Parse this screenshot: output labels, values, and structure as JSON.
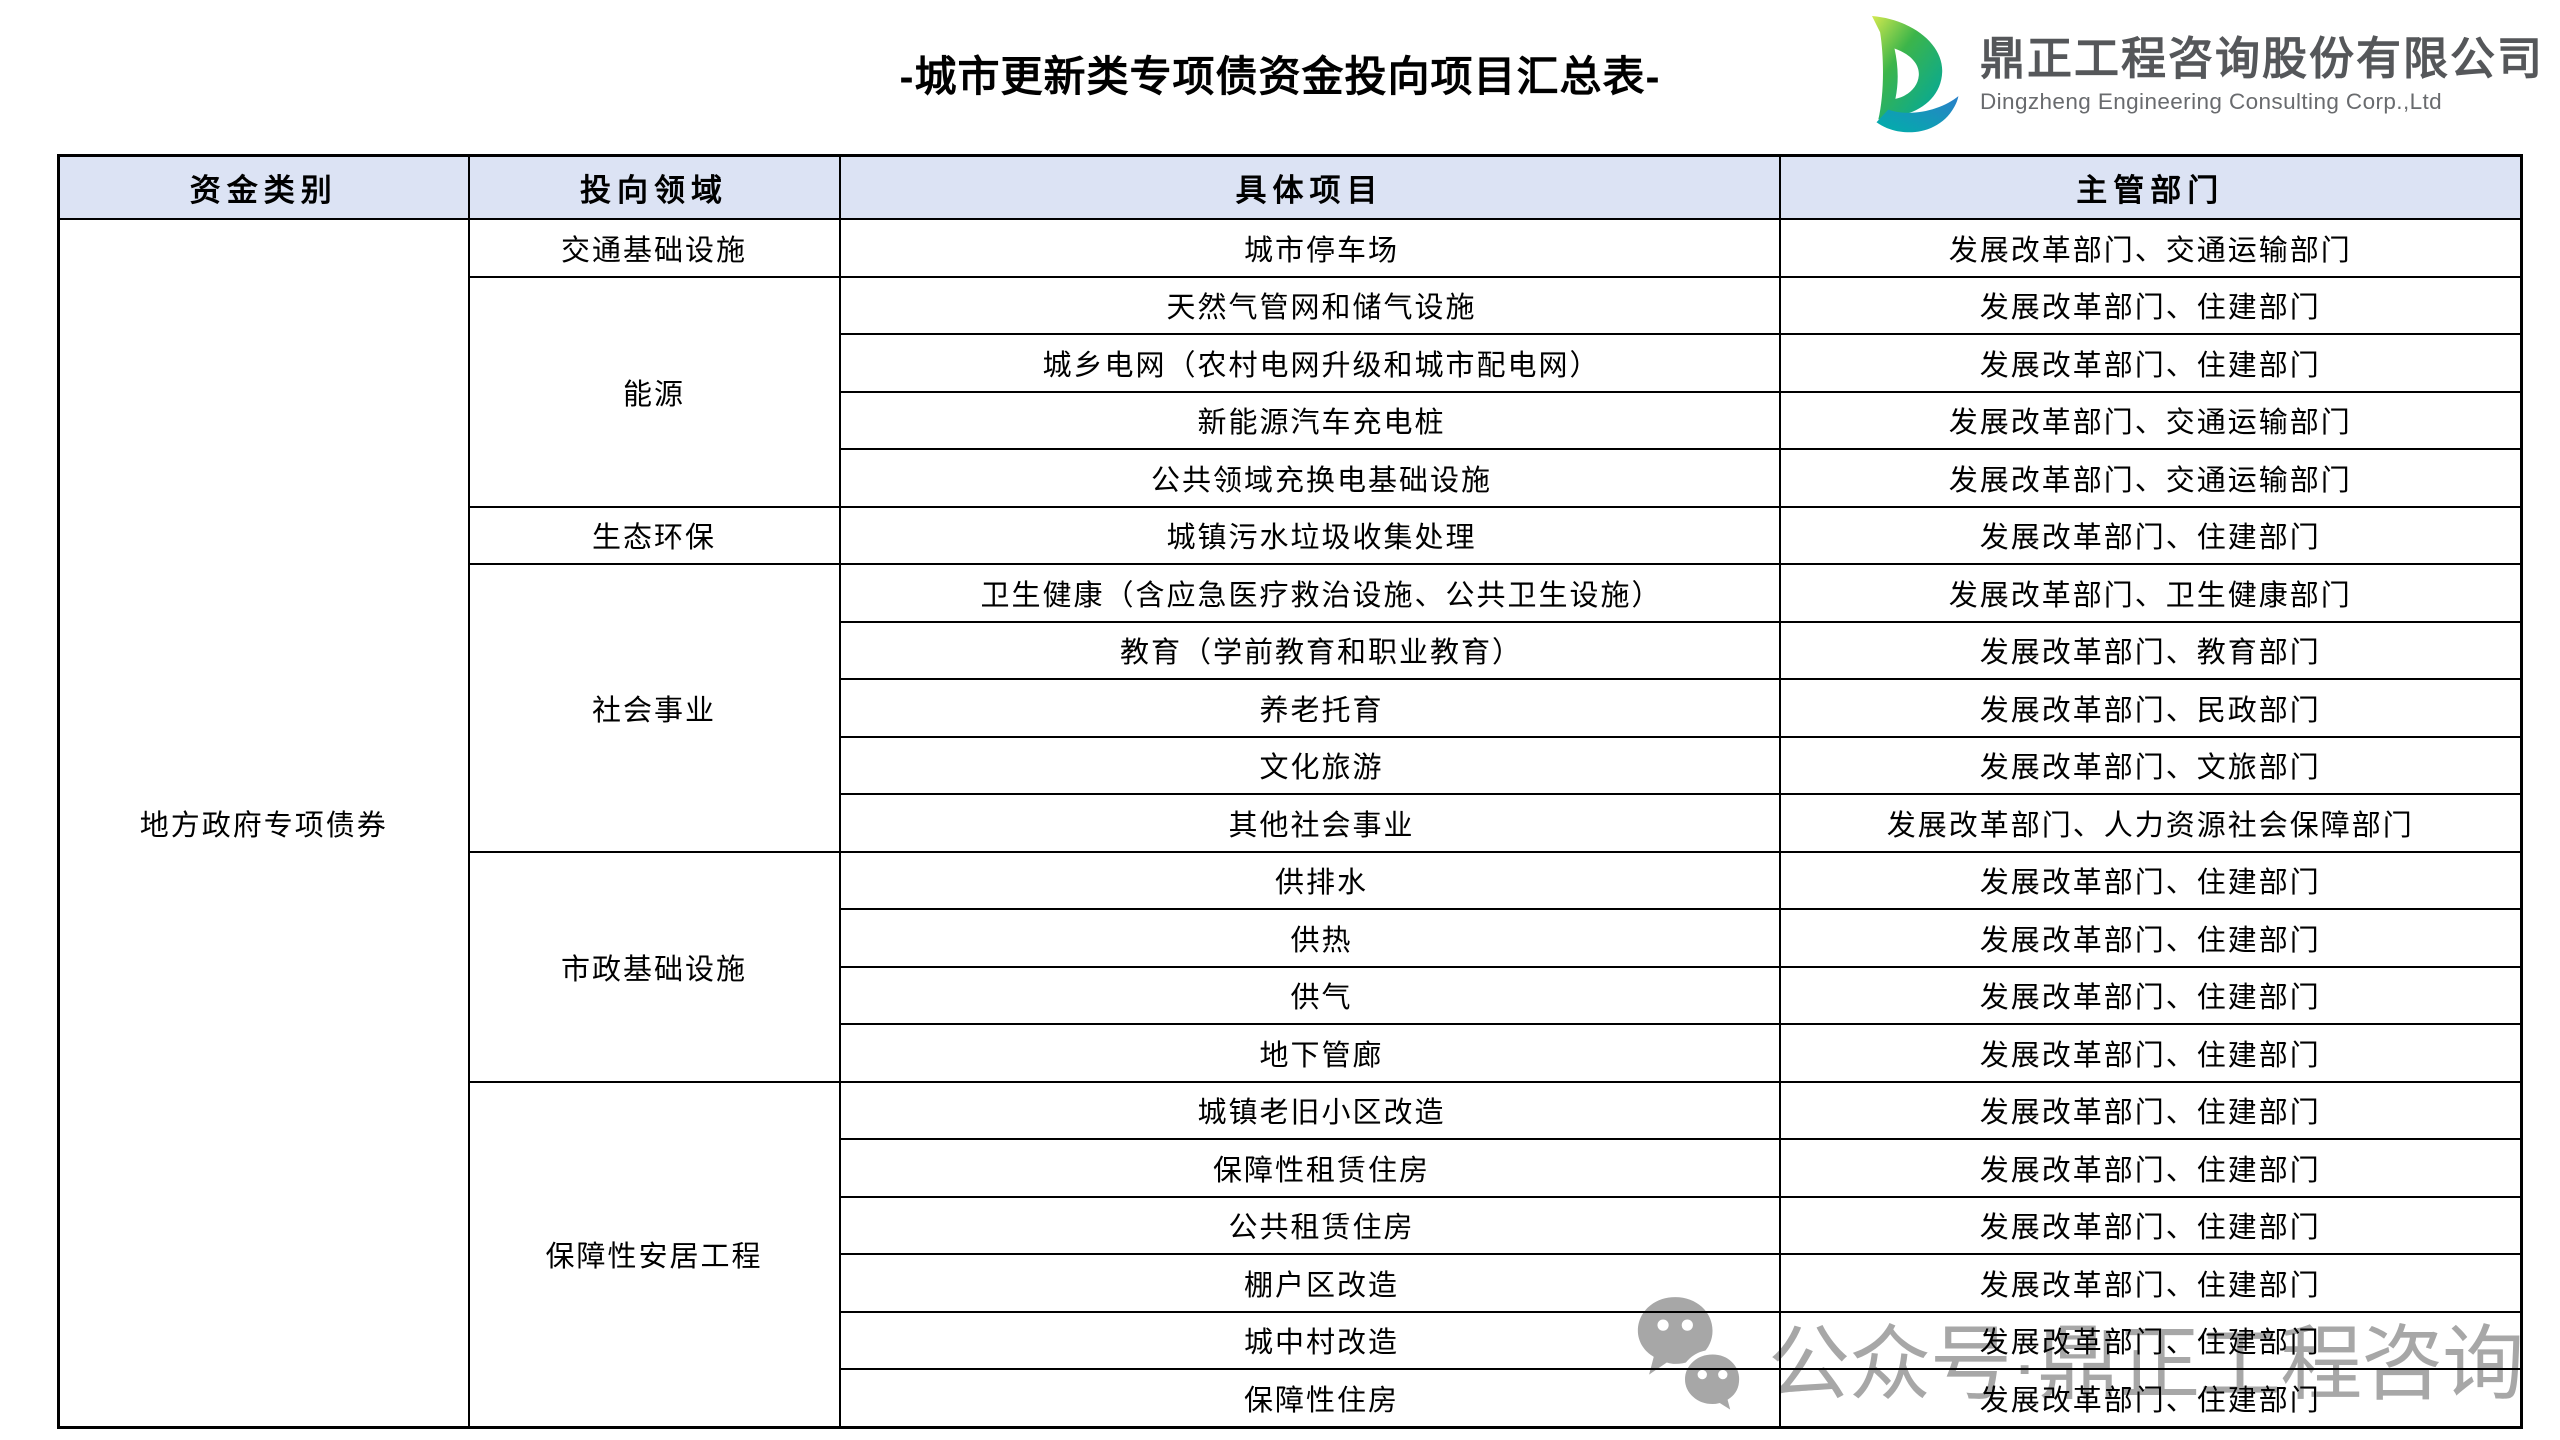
{
  "title": "-城市更新类专项债资金投向项目汇总表-",
  "logo": {
    "company_cn": "鼎正工程咨询股份有限公司",
    "company_en": "Dingzheng Engineering Consulting Corp.,Ltd"
  },
  "table": {
    "headers": [
      "资金类别",
      "投向领域",
      "具体项目",
      "主管部门"
    ],
    "fund_category": "地方政府专项债券",
    "groups": [
      {
        "field": "交通基础设施",
        "projects": [
          {
            "project": "城市停车场",
            "department": "发展改革部门、交通运输部门"
          }
        ]
      },
      {
        "field": "能源",
        "projects": [
          {
            "project": "天然气管网和储气设施",
            "department": "发展改革部门、住建部门"
          },
          {
            "project": "城乡电网（农村电网升级和城市配电网）",
            "department": "发展改革部门、住建部门"
          },
          {
            "project": "新能源汽车充电桩",
            "department": "发展改革部门、交通运输部门"
          },
          {
            "project": "公共领域充换电基础设施",
            "department": "发展改革部门、交通运输部门"
          }
        ]
      },
      {
        "field": "生态环保",
        "projects": [
          {
            "project": "城镇污水垃圾收集处理",
            "department": "发展改革部门、住建部门"
          }
        ]
      },
      {
        "field": "社会事业",
        "projects": [
          {
            "project": "卫生健康（含应急医疗救治设施、公共卫生设施）",
            "department": "发展改革部门、卫生健康部门"
          },
          {
            "project": "教育（学前教育和职业教育）",
            "department": "发展改革部门、教育部门"
          },
          {
            "project": "养老托育",
            "department": "发展改革部门、民政部门"
          },
          {
            "project": "文化旅游",
            "department": "发展改革部门、文旅部门"
          },
          {
            "project": "其他社会事业",
            "department": "发展改革部门、人力资源社会保障部门"
          }
        ]
      },
      {
        "field": "市政基础设施",
        "projects": [
          {
            "project": "供排水",
            "department": "发展改革部门、住建部门"
          },
          {
            "project": "供热",
            "department": "发展改革部门、住建部门"
          },
          {
            "project": "供气",
            "department": "发展改革部门、住建部门"
          },
          {
            "project": "地下管廊",
            "department": "发展改革部门、住建部门"
          }
        ]
      },
      {
        "field": "保障性安居工程",
        "projects": [
          {
            "project": "城镇老旧小区改造",
            "department": "发展改革部门、住建部门"
          },
          {
            "project": "保障性租赁住房",
            "department": "发展改革部门、住建部门"
          },
          {
            "project": "公共租赁住房",
            "department": "发展改革部门、住建部门"
          },
          {
            "project": "棚户区改造",
            "department": "发展改革部门、住建部门"
          },
          {
            "project": "城中村改造",
            "department": "发展改革部门、住建部门"
          },
          {
            "project": "保障性住房",
            "department": "发展改革部门、住建部门"
          }
        ]
      }
    ]
  },
  "watermark": {
    "text": "公众号·鼎正工程咨询",
    "icon": "wechat-icon"
  },
  "colors": {
    "header_bg": "#dce3f4",
    "border": "#000000",
    "watermark_gray": "#a7a7a7",
    "company_text": "#55575a",
    "logo_green_light": "#d3e94e",
    "logo_green": "#3cb54a",
    "logo_teal": "#00a79d",
    "logo_blue": "#2a7fc9"
  }
}
